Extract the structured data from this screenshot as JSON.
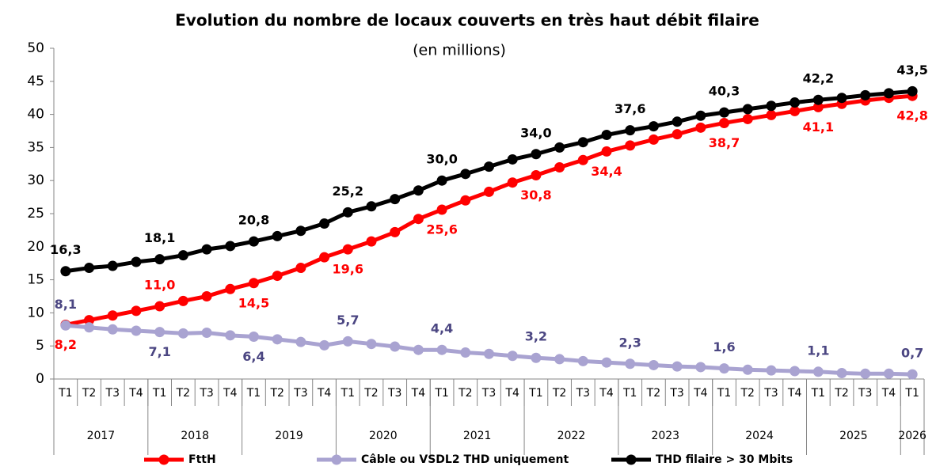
{
  "chart_data": {
    "type": "line",
    "title": "Evolution du nombre de locaux couverts en très haut débit filaire",
    "subtitle": "(en millions)",
    "categories": [
      "T1",
      "T2",
      "T3",
      "T4",
      "T1",
      "T2",
      "T3",
      "T4",
      "T1",
      "T2",
      "T3",
      "T4",
      "T1",
      "T2",
      "T3",
      "T4",
      "T1",
      "T2",
      "T3",
      "T4",
      "T1",
      "T2",
      "T3",
      "T4",
      "T1",
      "T2",
      "T3",
      "T4",
      "T1",
      "T2",
      "T3",
      "T4",
      "T1",
      "T2",
      "T3",
      "T4",
      "T1"
    ],
    "x_groups": [
      {
        "label": "2017",
        "count": 4
      },
      {
        "label": "2018",
        "count": 4
      },
      {
        "label": "2019",
        "count": 4
      },
      {
        "label": "2020",
        "count": 4
      },
      {
        "label": "2021",
        "count": 4
      },
      {
        "label": "2022",
        "count": 4
      },
      {
        "label": "2023",
        "count": 4
      },
      {
        "label": "2024",
        "count": 4
      },
      {
        "label": "2025",
        "count": 4
      },
      {
        "label": "2026",
        "count": 1
      }
    ],
    "ylim": [
      0,
      50
    ],
    "yticks": [
      0,
      5,
      10,
      15,
      20,
      25,
      30,
      35,
      40,
      45,
      50
    ],
    "grid": false,
    "legend": "bottom",
    "series": [
      {
        "name": "FttH",
        "color": "#ff0000",
        "label_color": "#ff0000",
        "values": [
          8.2,
          8.9,
          9.6,
          10.3,
          11.0,
          11.8,
          12.5,
          13.6,
          14.5,
          15.6,
          16.8,
          18.4,
          19.6,
          20.8,
          22.2,
          24.2,
          25.6,
          27.0,
          28.3,
          29.7,
          30.8,
          32.0,
          33.1,
          34.4,
          35.3,
          36.2,
          37.0,
          38.0,
          38.7,
          39.3,
          39.9,
          40.5,
          41.1,
          41.6,
          42.1,
          42.5,
          42.8
        ],
        "value_labels": [
          "8,2",
          null,
          null,
          null,
          "11,0",
          null,
          null,
          null,
          "14,5",
          null,
          null,
          null,
          "19,6",
          null,
          null,
          null,
          "25,6",
          null,
          null,
          null,
          "30,8",
          null,
          null,
          "34,4",
          null,
          null,
          null,
          null,
          "38,7",
          null,
          null,
          null,
          "41,1",
          null,
          null,
          null,
          "42,8"
        ]
      },
      {
        "name": "Câble ou VSDL2 THD uniquement",
        "color": "#a9a3d1",
        "label_color": "#4b4682",
        "values": [
          8.1,
          7.8,
          7.5,
          7.3,
          7.1,
          6.9,
          7.0,
          6.6,
          6.4,
          6.0,
          5.6,
          5.1,
          5.7,
          5.3,
          4.9,
          4.4,
          4.4,
          4.0,
          3.8,
          3.5,
          3.2,
          3.0,
          2.7,
          2.5,
          2.3,
          2.1,
          1.9,
          1.8,
          1.6,
          1.4,
          1.3,
          1.2,
          1.1,
          0.9,
          0.8,
          0.8,
          0.7
        ],
        "value_labels": [
          "8,1",
          null,
          null,
          null,
          "7,1",
          null,
          null,
          null,
          "6,4",
          null,
          null,
          null,
          "5,7",
          null,
          null,
          null,
          "4,4",
          null,
          null,
          null,
          "3,2",
          null,
          null,
          null,
          "2,3",
          null,
          null,
          null,
          "1,6",
          null,
          null,
          null,
          "1,1",
          null,
          null,
          null,
          "0,7"
        ]
      },
      {
        "name": "THD filaire > 30 Mbits",
        "color": "#000000",
        "label_color": "#000000",
        "values": [
          16.3,
          16.8,
          17.1,
          17.7,
          18.1,
          18.7,
          19.6,
          20.1,
          20.8,
          21.6,
          22.4,
          23.5,
          25.2,
          26.1,
          27.2,
          28.5,
          30.0,
          31.0,
          32.1,
          33.2,
          34.0,
          35.0,
          35.8,
          36.9,
          37.6,
          38.2,
          38.9,
          39.8,
          40.3,
          40.8,
          41.3,
          41.8,
          42.2,
          42.5,
          42.9,
          43.2,
          43.5
        ],
        "value_labels": [
          "16,3",
          null,
          null,
          null,
          "18,1",
          null,
          null,
          null,
          "20,8",
          null,
          null,
          null,
          "25,2",
          null,
          null,
          null,
          "30,0",
          null,
          null,
          null,
          "34,0",
          null,
          null,
          null,
          "37,6",
          null,
          null,
          null,
          "40,3",
          null,
          null,
          null,
          "42,2",
          null,
          null,
          null,
          "43,5"
        ]
      }
    ]
  }
}
